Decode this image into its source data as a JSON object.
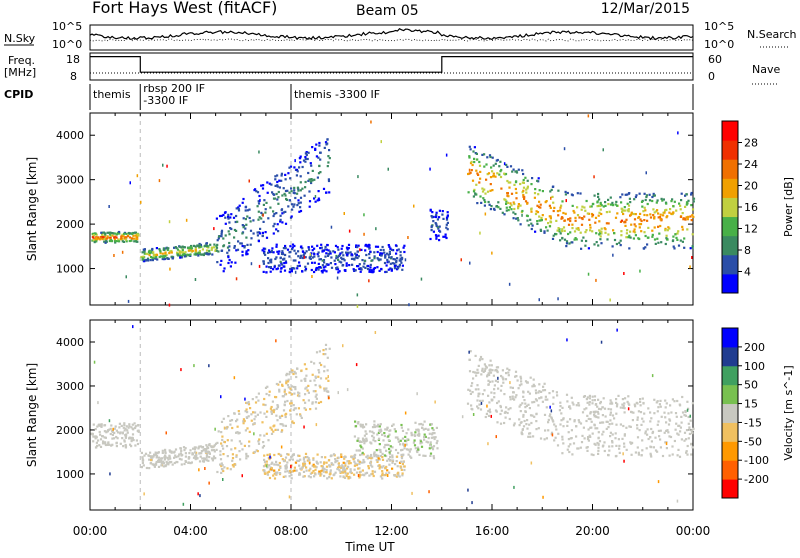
{
  "header": {
    "station": "Fort Hays West (fitACF)",
    "beam": "Beam 05",
    "date": "12/Mar/2015"
  },
  "summary": {
    "nsky_label": "N.Sky",
    "nsearch_label": "N.Search",
    "freq_label_1": "Freq.",
    "freq_label_2": "[MHz]",
    "nave_label": "Nave",
    "cpid_label": "CPID",
    "nsky_ticks": [
      "10^5",
      "10^0"
    ],
    "nsearch_ticks": [
      "10^5",
      "10^0"
    ],
    "freq_ticks": [
      "18",
      "8"
    ],
    "nave_ticks": [
      "60",
      "0"
    ],
    "cpid_segments": [
      {
        "start": 0,
        "end": 2,
        "lines": [
          "themis"
        ]
      },
      {
        "start": 2,
        "end": 8,
        "lines": [
          "rbsp 200 IF",
          "-3300 IF"
        ]
      },
      {
        "start": 8,
        "end": 24,
        "lines": [
          "themis -3300 IF"
        ]
      }
    ],
    "freq_steps": [
      {
        "start": 0,
        "end": 2,
        "value": 17
      },
      {
        "start": 2,
        "end": 14,
        "value": 11
      },
      {
        "start": 14,
        "end": 24,
        "value": 17
      }
    ]
  },
  "colors": {
    "power_scale": [
      "#0000ff",
      "#2a4ea8",
      "#3a8a60",
      "#48b048",
      "#c0d040",
      "#f0a000",
      "#f07000",
      "#f03000",
      "#ff0000"
    ],
    "velocity_scale": [
      "#ff0000",
      "#ff6000",
      "#ff9900",
      "#f0c060",
      "#c8c8c0",
      "#78c050",
      "#40a060",
      "#203c90",
      "#0000ff"
    ],
    "ground_gray": "#c8c8c0"
  },
  "chart_data": [
    {
      "type": "heatmap",
      "title": "Power",
      "xlabel": "Time UT",
      "ylabel": "Slant Range [km]",
      "xlim": [
        0,
        24
      ],
      "ylim": [
        180,
        4500
      ],
      "yticks": [
        "1000",
        "2000",
        "3000",
        "4000"
      ],
      "colorbar_label": "Power [dB]",
      "colorbar_ticks": [
        "4",
        "8",
        "12",
        "16",
        "20",
        "24",
        "28"
      ],
      "color_range": [
        0,
        30
      ],
      "echo_bands": [
        {
          "t0": 0.0,
          "t1": 1.9,
          "r0": 1550,
          "r1": 1900,
          "peak_db": 24
        },
        {
          "t0": 2.0,
          "t1": 5.0,
          "r0": 1200,
          "r1": 1600,
          "peak_db": 18
        },
        {
          "t0": 5.0,
          "t1": 9.5,
          "r0": 1500,
          "r1": 3400,
          "peak_db": 8
        },
        {
          "t0": 6.8,
          "t1": 12.5,
          "r0": 800,
          "r1": 1700,
          "peak_db": 6
        },
        {
          "t0": 13.5,
          "t1": 14.2,
          "r0": 1500,
          "r1": 2500,
          "peak_db": 6
        },
        {
          "t0": 15.0,
          "t1": 24.0,
          "r0": 1700,
          "r1": 3500,
          "peak_db": 22
        }
      ]
    },
    {
      "type": "heatmap",
      "title": "Velocity",
      "xlabel": "Time UT",
      "ylabel": "Slant Range [km]",
      "xlim": [
        0,
        24
      ],
      "ylim": [
        180,
        4500
      ],
      "yticks": [
        "1000",
        "2000",
        "3000",
        "4000"
      ],
      "colorbar_label": "Velocity [m s^-1]",
      "colorbar_ticks": [
        "-200",
        "-100",
        "-50",
        "-15",
        "15",
        "50",
        "100",
        "200"
      ],
      "color_range": [
        -250,
        250
      ],
      "echo_bands": [
        {
          "t0": 0.0,
          "t1": 1.9,
          "r0": 1500,
          "r1": 2300,
          "vel": 0
        },
        {
          "t0": 2.0,
          "t1": 5.0,
          "r0": 1150,
          "r1": 1700,
          "vel": -10
        },
        {
          "t0": 5.0,
          "t1": 9.5,
          "r0": 1500,
          "r1": 3400,
          "vel": -40
        },
        {
          "t0": 6.8,
          "t1": 12.5,
          "r0": 800,
          "r1": 1600,
          "vel": -70
        },
        {
          "t0": 10.5,
          "t1": 13.8,
          "r0": 1200,
          "r1": 2400,
          "vel": 20
        },
        {
          "t0": 15.0,
          "t1": 24.0,
          "r0": 1500,
          "r1": 3500,
          "vel": 0
        }
      ],
      "x_ticks": [
        "00:00",
        "04:00",
        "08:00",
        "12:00",
        "16:00",
        "20:00",
        "00:00"
      ]
    }
  ]
}
